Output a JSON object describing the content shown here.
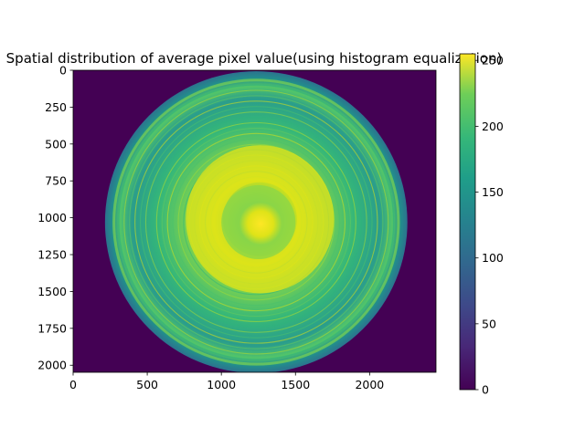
{
  "chart_data": {
    "type": "heatmap",
    "title": "Spatial distribution of average pixel value(using histogram equalization)",
    "xlabel": "",
    "ylabel": "",
    "xlim": [
      0,
      2448
    ],
    "ylim": [
      2048,
      0
    ],
    "x_ticks": [
      0,
      500,
      1000,
      1500,
      2000
    ],
    "y_ticks": [
      0,
      250,
      500,
      750,
      1000,
      1250,
      1500,
      1750,
      2000
    ],
    "colormap": "viridis",
    "colorbar": {
      "range": [
        0,
        255
      ],
      "ticks": [
        0,
        50,
        100,
        150,
        200,
        250
      ]
    },
    "background_value": 0,
    "features": {
      "outer_disc": {
        "center": [
          1235,
          1030
        ],
        "radius": 1020,
        "value_range": [
          80,
          170
        ]
      },
      "bright_rim_band": {
        "radius": 960,
        "value": 185
      },
      "inner_bright_ring": {
        "center": [
          1260,
          1010
        ],
        "radius_range": [
          250,
          500
        ],
        "value": 235
      },
      "center_spot": {
        "center": [
          1265,
          1040
        ],
        "radius": 80,
        "value": 250
      },
      "center_region": {
        "center": [
          1250,
          1030
        ],
        "radius": 250,
        "value": 160
      }
    },
    "grid": false
  },
  "colors": {
    "viridis_low": "#440154",
    "viridis_high": "#fde725",
    "axis": "#000000"
  }
}
